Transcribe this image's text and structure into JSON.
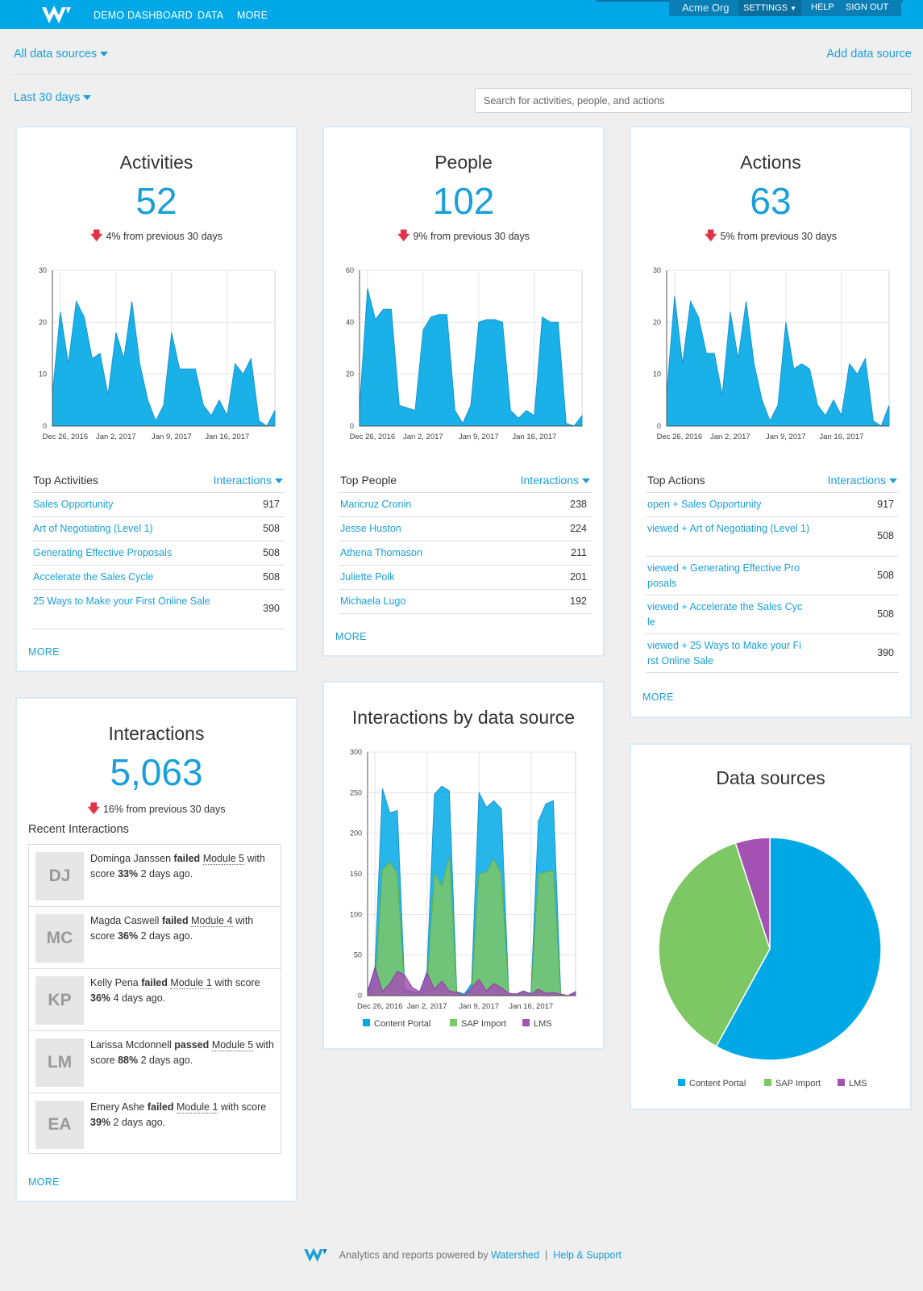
{
  "topbar": {
    "nav": [
      "DEMO DASHBOARD",
      "DATA",
      "MORE"
    ],
    "org": "Acme Org",
    "settings": "SETTINGS",
    "help": "HELP",
    "signout": "SIGN OUT"
  },
  "filters": {
    "sources": "All data sources",
    "add_source": "Add data source",
    "period": "Last 30 days",
    "search_placeholder": "Search for activities, people, and actions"
  },
  "activities": {
    "title": "Activities",
    "count": "52",
    "change_pct": "4%",
    "change_text": "from previous 30 days",
    "list_title": "Top Activities",
    "sort": "Interactions",
    "items": [
      {
        "label": "Sales Opportunity",
        "value": "917"
      },
      {
        "label": "Art of Negotiating (Level 1)",
        "value": "508"
      },
      {
        "label": "Generating Effective Proposals",
        "value": "508"
      },
      {
        "label": "Accelerate the Sales Cycle",
        "value": "508"
      },
      {
        "label": "25 Ways to Make your First Online Sale",
        "value": "390"
      }
    ],
    "more": "MORE"
  },
  "people": {
    "title": "People",
    "count": "102",
    "change_pct": "9%",
    "change_text": "from previous 30 days",
    "list_title": "Top People",
    "sort": "Interactions",
    "items": [
      {
        "label": "Maricruz Cronin",
        "value": "238"
      },
      {
        "label": "Jesse Huston",
        "value": "224"
      },
      {
        "label": "Athena Thomason",
        "value": "211"
      },
      {
        "label": "Juliette Polk",
        "value": "201"
      },
      {
        "label": "Michaela Lugo",
        "value": "192"
      }
    ],
    "more": "MORE"
  },
  "actions": {
    "title": "Actions",
    "count": "63",
    "change_pct": "5%",
    "change_text": "from previous 30 days",
    "list_title": "Top Actions",
    "sort": "Interactions",
    "items": [
      {
        "label": "open + Sales Opportunity",
        "value": "917"
      },
      {
        "label": "viewed + Art of Negotiating (Level 1)",
        "value": "508"
      },
      {
        "label": "viewed + Generating Effective Pro posals",
        "value": "508"
      },
      {
        "label": "viewed + Accelerate the Sales Cyc le",
        "value": "508"
      },
      {
        "label": "viewed + 25 Ways to Make your Fi rst Online Sale",
        "value": "390"
      }
    ],
    "more": "MORE"
  },
  "interactions": {
    "title": "Interactions",
    "count": "5,063",
    "change_pct": "16%",
    "change_text": "from previous 30 days",
    "recent_title": "Recent Interactions",
    "recent": [
      {
        "initials": "DJ",
        "name": "Dominga Janssen",
        "verb": "failed",
        "module": "Module 5",
        "mid": "with score",
        "score": "33%",
        "time": "2 days ago."
      },
      {
        "initials": "MC",
        "name": "Magda Caswell",
        "verb": "failed",
        "module": "Module 4",
        "mid": "with score",
        "score": "36%",
        "time": "2 days ago."
      },
      {
        "initials": "KP",
        "name": "Kelly Pena",
        "verb": "failed",
        "module": "Module 1",
        "mid": "with score",
        "score": "36%",
        "time": "4 days ago."
      },
      {
        "initials": "LM",
        "name": "Larissa Mcdonnell",
        "verb": "passed",
        "module": "Module 5",
        "mid": "with score",
        "score": "88%",
        "time": "2 days ago."
      },
      {
        "initials": "EA",
        "name": "Emery Ashe",
        "verb": "failed",
        "module": "Module 1",
        "mid": "with score",
        "score": "39%",
        "time": "2 days ago."
      }
    ],
    "more": "MORE"
  },
  "by_source": {
    "title": "Interactions by data source"
  },
  "sources_pie": {
    "title": "Data sources"
  },
  "footer": {
    "text": "Analytics and reports powered by",
    "brand": "Watershed",
    "sep": "|",
    "help": "Help & Support"
  },
  "colors": {
    "accent": "#1aa0d8",
    "content_portal": "#00a9e6",
    "sap_import": "#7dc765",
    "lms": "#a352b3",
    "down": "#e0334a"
  },
  "chart_data": [
    {
      "id": "activities",
      "type": "area",
      "x_ticks": [
        "Dec 26, 2016",
        "Jan 2, 2017",
        "Jan 9, 2017",
        "Jan 16, 2017"
      ],
      "ylim": [
        0,
        30
      ],
      "y_ticks": [
        0,
        10,
        20,
        30
      ],
      "grid": true,
      "values": [
        6,
        22,
        12,
        24,
        21,
        13,
        14,
        6,
        18,
        13,
        24,
        12,
        5,
        1,
        4,
        18,
        11,
        11,
        11,
        4,
        2,
        5,
        2,
        12,
        10,
        13,
        1,
        0,
        3
      ]
    },
    {
      "id": "people",
      "type": "area",
      "x_ticks": [
        "Dec 26, 2016",
        "Jan 2, 2017",
        "Jan 9, 2017",
        "Jan 16, 2017"
      ],
      "ylim": [
        0,
        60
      ],
      "y_ticks": [
        0,
        20,
        40,
        60
      ],
      "grid": true,
      "values": [
        7,
        53,
        41,
        45,
        45,
        8,
        7,
        6,
        37,
        42,
        43,
        43,
        6,
        1,
        8,
        40,
        41,
        41,
        40,
        6,
        3,
        6,
        4,
        42,
        40,
        40,
        1,
        0,
        4
      ]
    },
    {
      "id": "actions",
      "type": "area",
      "x_ticks": [
        "Dec 26, 2016",
        "Jan 2, 2017",
        "Jan 9, 2017",
        "Jan 16, 2017"
      ],
      "ylim": [
        0,
        30
      ],
      "y_ticks": [
        0,
        10,
        20,
        30
      ],
      "grid": true,
      "values": [
        6,
        25,
        12,
        24,
        21,
        14,
        14,
        6,
        22,
        13,
        24,
        12,
        5,
        1,
        4,
        20,
        11,
        12,
        11,
        4,
        2,
        5,
        2,
        12,
        10,
        13,
        1,
        0,
        4
      ]
    },
    {
      "id": "by_source",
      "type": "area",
      "x_ticks": [
        "Dec 26, 2016",
        "Jan 2, 2017",
        "Jan 9, 2017",
        "Jan 16, 2017"
      ],
      "ylim": [
        0,
        300
      ],
      "y_ticks": [
        0,
        50,
        100,
        150,
        200,
        250,
        300
      ],
      "grid": true,
      "legend": "bottom",
      "series": [
        {
          "name": "Content Portal",
          "values": [
            3,
            35,
            255,
            225,
            228,
            8,
            5,
            3,
            30,
            248,
            258,
            252,
            5,
            2,
            15,
            250,
            232,
            240,
            230,
            3,
            2,
            5,
            3,
            215,
            236,
            240,
            2,
            0,
            5
          ]
        },
        {
          "name": "SAP Import",
          "values": [
            0,
            10,
            155,
            165,
            150,
            4,
            3,
            2,
            10,
            150,
            135,
            172,
            3,
            0,
            5,
            150,
            152,
            168,
            150,
            2,
            1,
            3,
            1,
            150,
            152,
            155,
            1,
            0,
            0
          ]
        },
        {
          "name": "LMS",
          "values": [
            5,
            35,
            5,
            15,
            30,
            25,
            10,
            5,
            28,
            8,
            18,
            6,
            4,
            0,
            10,
            20,
            6,
            15,
            10,
            3,
            2,
            6,
            2,
            8,
            3,
            4,
            2,
            0,
            5
          ]
        }
      ]
    },
    {
      "id": "sources_pie",
      "type": "pie",
      "legend": "bottom",
      "categories": [
        "Content Portal",
        "SAP Import",
        "LMS"
      ],
      "values": [
        58,
        37,
        5
      ]
    }
  ]
}
